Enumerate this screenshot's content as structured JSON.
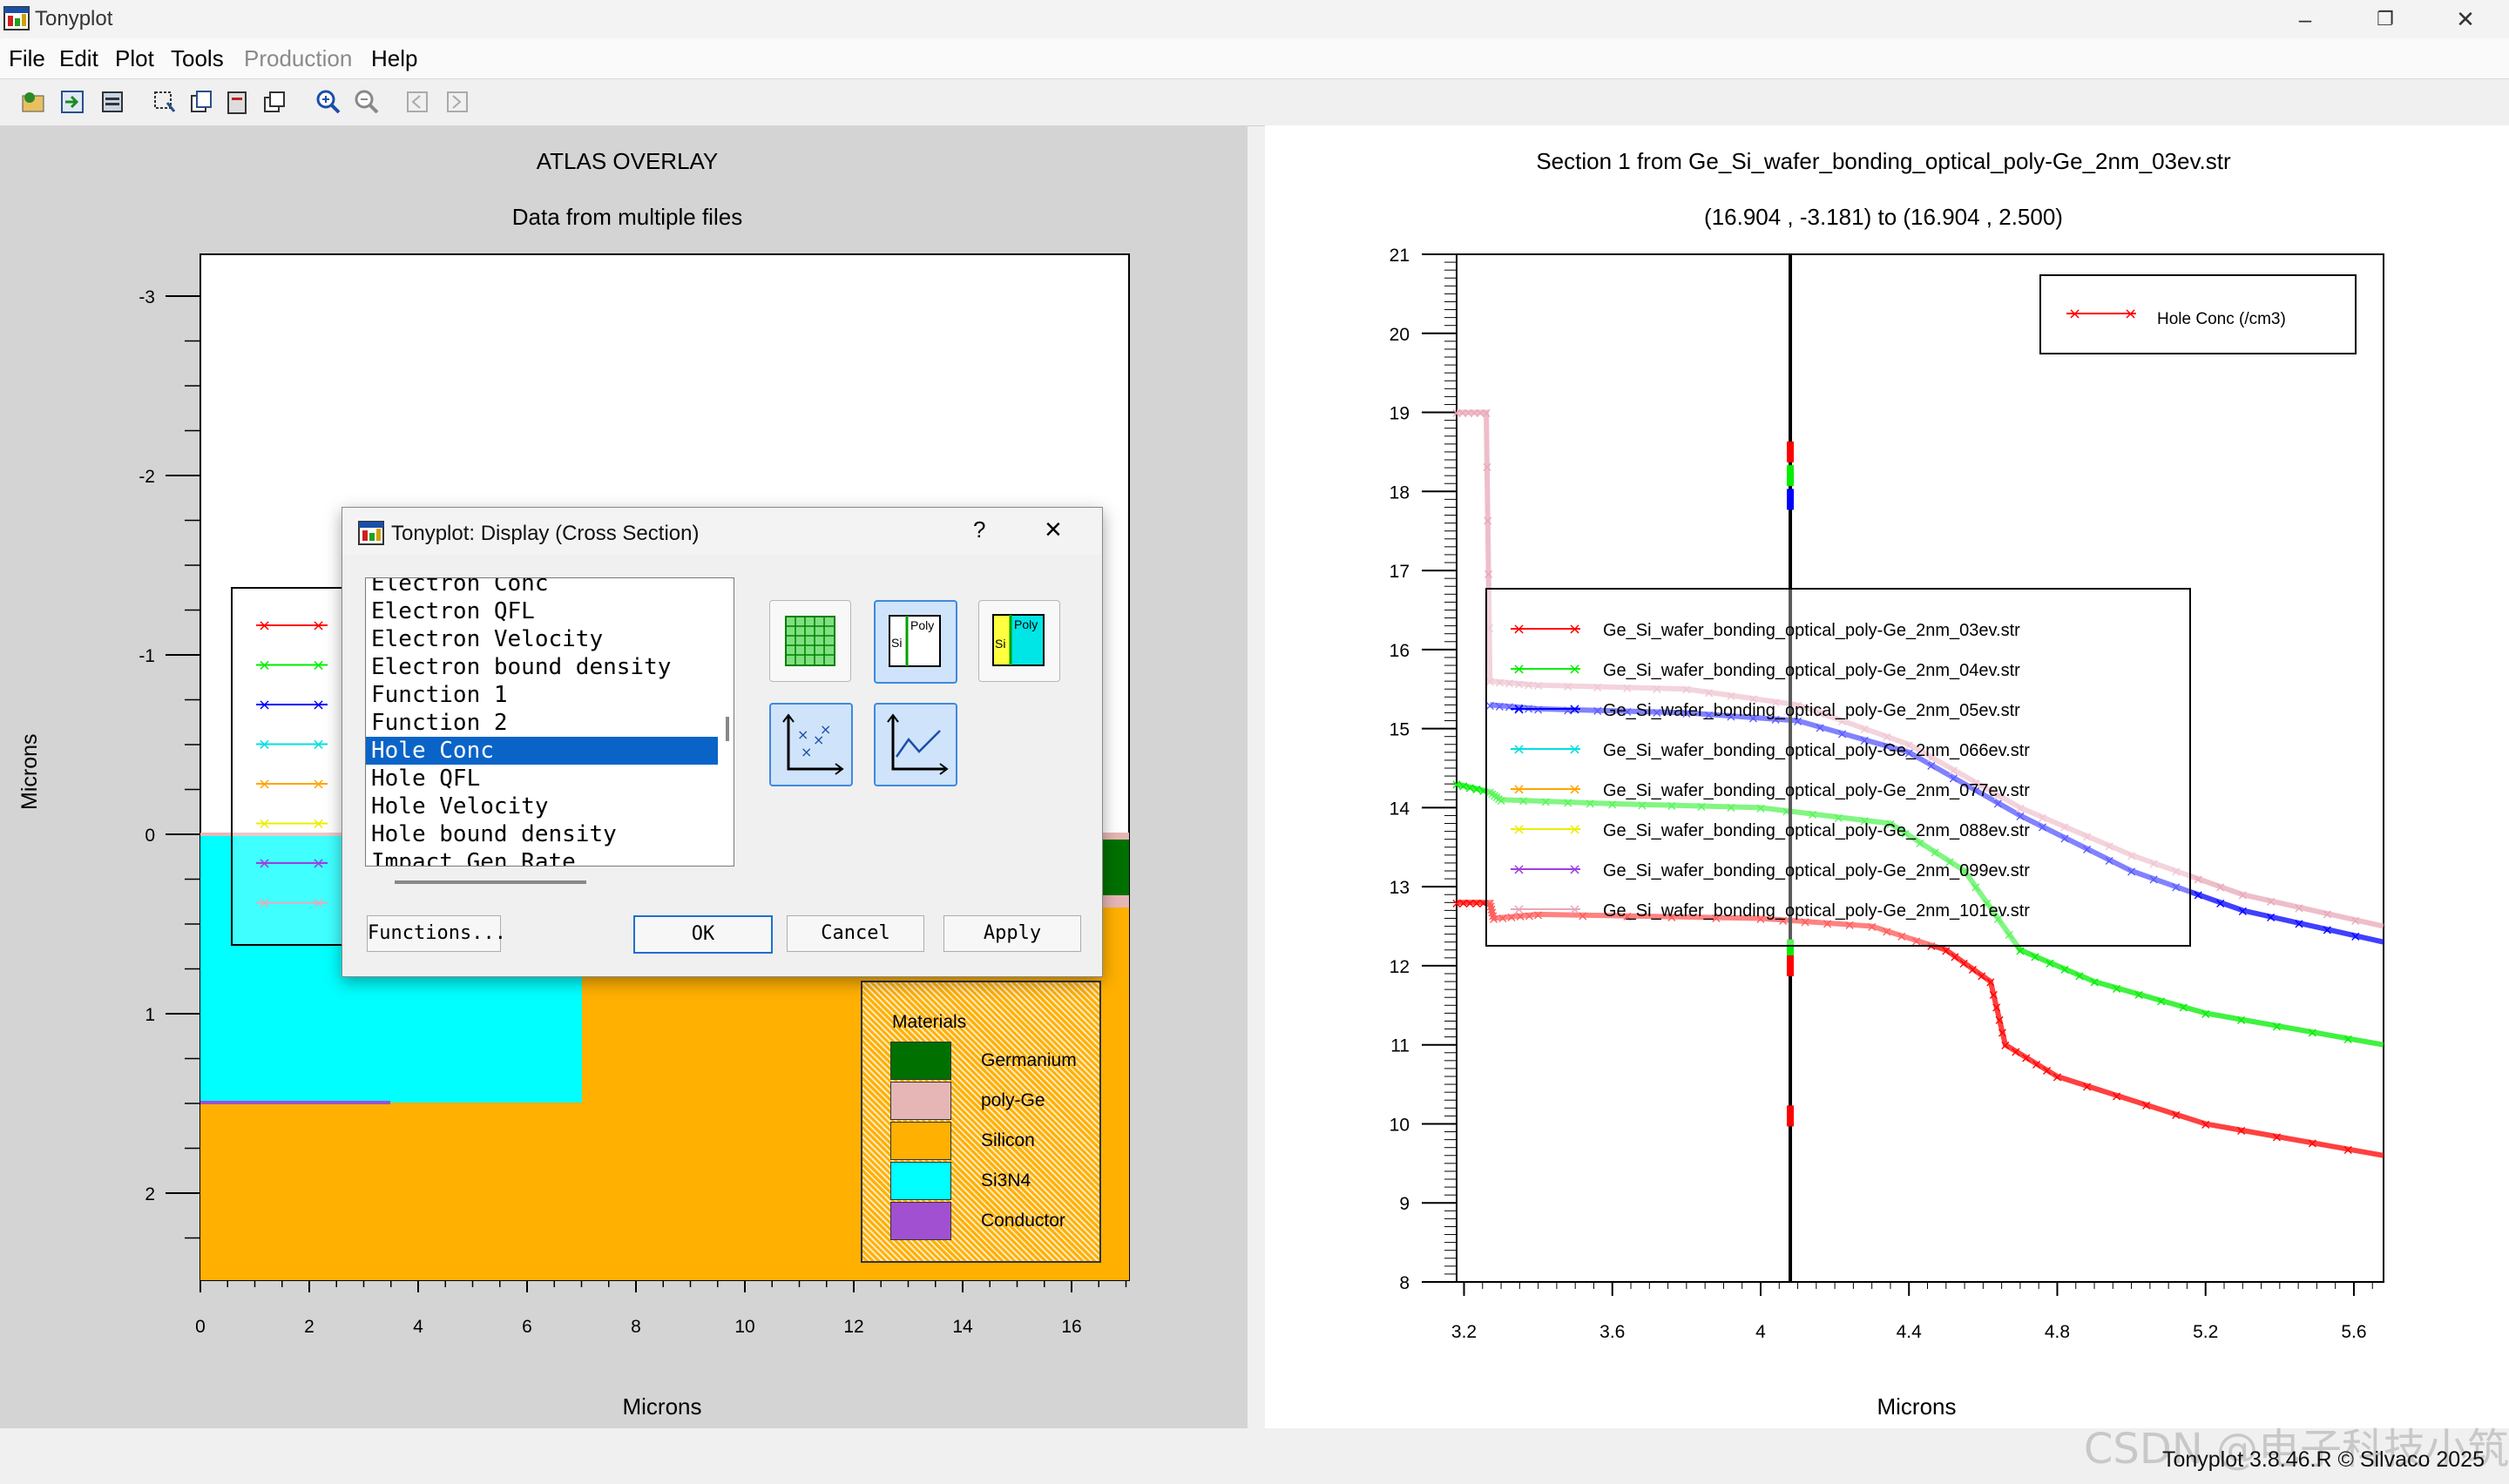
{
  "app": {
    "title": "Tonyplot",
    "credit": "Tonyplot 3.8.46.R © Silvaco 2025",
    "watermark": "CSDN @电子科技小筑"
  },
  "menu": [
    "File",
    "Edit",
    "Plot",
    "Tools",
    "Production",
    "Help"
  ],
  "left_plot": {
    "title": "ATLAS OVERLAY",
    "subtitle": "Data from multiple files",
    "xlabel": "Microns",
    "ylabel": "Microns",
    "x_ticks": [
      "0",
      "2",
      "4",
      "6",
      "8",
      "10",
      "12",
      "14",
      "16"
    ],
    "y_ticks": [
      "-3",
      "-2",
      "-1",
      "0",
      "1",
      "2"
    ]
  },
  "materials_legend": {
    "title": "Materials",
    "items": [
      {
        "name": "Germanium",
        "color": "#007000"
      },
      {
        "name": "poly-Ge",
        "color": "#e6b6b6"
      },
      {
        "name": "Silicon",
        "color": "#ffb000"
      },
      {
        "name": "Si3N4",
        "color": "#00ffff"
      },
      {
        "name": "Conductor",
        "color": "#a050d0"
      }
    ]
  },
  "chart_data": {
    "type": "line",
    "title": "Section 1 from Ge_Si_wafer_bonding_optical_poly-Ge_2nm_03ev.str",
    "subtitle": "(16.904 , -3.181) to (16.904 , 2.500)",
    "xlabel": "Microns",
    "ylabel": "",
    "xlim": [
      3.18,
      5.68
    ],
    "ylim": [
      8,
      21
    ],
    "x_ticks": [
      "3.2",
      "3.6",
      "4",
      "4.4",
      "4.8",
      "5.2",
      "5.6"
    ],
    "y_ticks": [
      "8",
      "9",
      "10",
      "11",
      "12",
      "13",
      "14",
      "15",
      "16",
      "17",
      "18",
      "19",
      "20",
      "21"
    ],
    "marker_line_x": 4.08,
    "top_legend": "Hole Conc (/cm3)",
    "series": [
      {
        "name": "Ge_Si_wafer_bonding_optical_poly-Ge_2nm_03ev.str",
        "color": "#ff0000",
        "x": [
          3.18,
          3.27,
          3.28,
          3.4,
          4.0,
          4.3,
          4.5,
          4.62,
          4.66,
          4.8,
          5.2,
          5.68
        ],
        "y": [
          12.8,
          12.8,
          12.6,
          12.65,
          12.6,
          12.5,
          12.2,
          11.8,
          11.0,
          10.6,
          10.0,
          9.6
        ]
      },
      {
        "name": "Ge_Si_wafer_bonding_optical_poly-Ge_2nm_04ev.str",
        "color": "#00ee00",
        "x": [
          3.18,
          3.27,
          3.3,
          3.6,
          4.0,
          4.35,
          4.55,
          4.7,
          4.9,
          5.2,
          5.68
        ],
        "y": [
          14.3,
          14.2,
          14.1,
          14.05,
          14.0,
          13.8,
          13.2,
          12.2,
          11.8,
          11.4,
          11.0
        ]
      },
      {
        "name": "Ge_Si_wafer_bonding_optical_poly-Ge_2nm_05ev.str",
        "color": "#0000ff",
        "x": [
          3.27,
          3.4,
          3.8,
          4.1,
          4.4,
          4.7,
          5.0,
          5.3,
          5.68
        ],
        "y": [
          15.3,
          15.25,
          15.2,
          15.1,
          14.7,
          13.9,
          13.2,
          12.7,
          12.3
        ]
      },
      {
        "name": "Ge_Si_wafer_bonding_optical_poly-Ge_2nm_066ev.str",
        "color": "#00e0e0",
        "x": [],
        "y": []
      },
      {
        "name": "Ge_Si_wafer_bonding_optical_poly-Ge_2nm_077ev.str",
        "color": "#ffa500",
        "x": [],
        "y": []
      },
      {
        "name": "Ge_Si_wafer_bonding_optical_poly-Ge_2nm_088ev.str",
        "color": "#eeee00",
        "x": [],
        "y": []
      },
      {
        "name": "Ge_Si_wafer_bonding_optical_poly-Ge_2nm_099ev.str",
        "color": "#9a40e0",
        "x": [],
        "y": []
      },
      {
        "name": "Ge_Si_wafer_bonding_optical_poly-Ge_2nm_101ev.str",
        "color": "#e8a8b8",
        "x": [
          3.18,
          3.26,
          3.27,
          3.4,
          3.8,
          4.1,
          4.4,
          4.7,
          5.0,
          5.3,
          5.68
        ],
        "y": [
          19.0,
          19.0,
          15.6,
          15.55,
          15.5,
          15.3,
          14.8,
          14.0,
          13.4,
          12.9,
          12.5
        ]
      }
    ]
  },
  "dialog": {
    "title": "Tonyplot: Display (Cross Section)",
    "help": "?",
    "close": "×",
    "items": [
      "Electron Conc",
      "Electron QFL",
      "Electron Velocity",
      "Electron bound density",
      "Function 1",
      "Function 2",
      "Hole Conc",
      "Hole QFL",
      "Hole Velocity",
      "Hole bound density",
      "Impact Gen Rate"
    ],
    "selected": "Hole Conc",
    "functions_btn": "Functions...",
    "ok": "OK",
    "cancel": "Cancel",
    "apply": "Apply"
  }
}
